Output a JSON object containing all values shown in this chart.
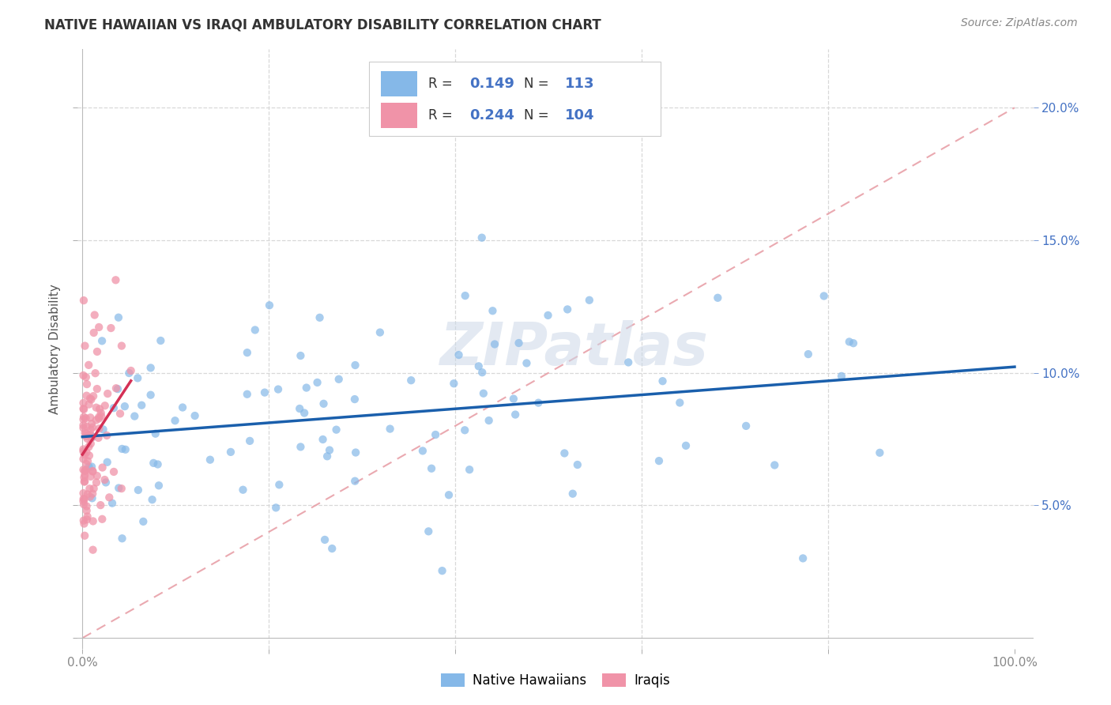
{
  "title": "NATIVE HAWAIIAN VS IRAQI AMBULATORY DISABILITY CORRELATION CHART",
  "source": "Source: ZipAtlas.com",
  "ylabel": "Ambulatory Disability",
  "watermark": "ZIPatlas",
  "nh_color": "#85b8e8",
  "iraqi_color": "#f093a8",
  "nh_line_color": "#1a5fac",
  "iraqi_line_color": "#d43055",
  "diag_line_color": "#e8a0a8",
  "background_color": "#ffffff",
  "grid_color": "#d8d8d8",
  "title_color": "#333333",
  "source_color": "#888888",
  "axis_label_color": "#555555",
  "right_tick_color": "#4472c4",
  "legend_r_color": "#333333",
  "legend_val_color": "#4472c4"
}
